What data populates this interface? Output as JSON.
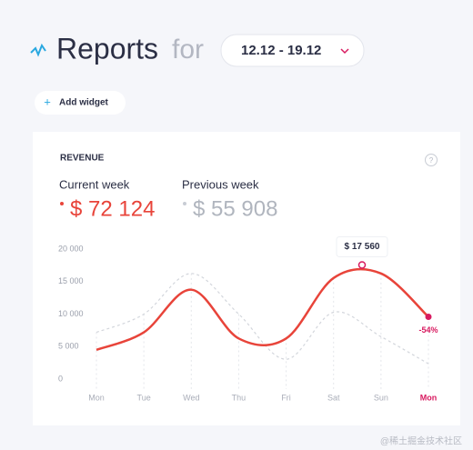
{
  "header": {
    "title": "Reports",
    "connector": "for",
    "date_range": "12.12 - 19.12"
  },
  "add_widget": "Add widget",
  "card": {
    "title": "REVENUE",
    "help": "?",
    "current_label": "Current week",
    "current_value": "$ 72 124",
    "previous_label": "Previous week",
    "previous_value": "$ 55 908"
  },
  "chart_data": {
    "type": "line",
    "categories": [
      "Mon",
      "Tue",
      "Wed",
      "Thu",
      "Fri",
      "Sat",
      "Sun",
      "Mon"
    ],
    "series": [
      {
        "name": "Current week",
        "color": "#e8443a",
        "values": [
          4500,
          7200,
          13750,
          6250,
          6250,
          15550,
          16250,
          9580
        ]
      },
      {
        "name": "Previous week",
        "color": "#d3d6dc",
        "values": [
          7200,
          10000,
          16250,
          10000,
          3050,
          10280,
          6530,
          2360
        ]
      }
    ],
    "ylim": [
      0,
      20000
    ],
    "yticks": [
      0,
      {
        "value": 5000,
        "label": "5 000"
      },
      {
        "value": 10000,
        "label": "10 000"
      },
      {
        "value": 15000,
        "label": "15 000"
      },
      {
        "value": 20000,
        "label": "20 000"
      }
    ],
    "highlight": {
      "x": 5.6,
      "value": 17560,
      "label": "$ 17 560"
    },
    "change_label": "-54%",
    "accent": "#d81b60"
  },
  "watermark": "@稀土掘金技术社区"
}
